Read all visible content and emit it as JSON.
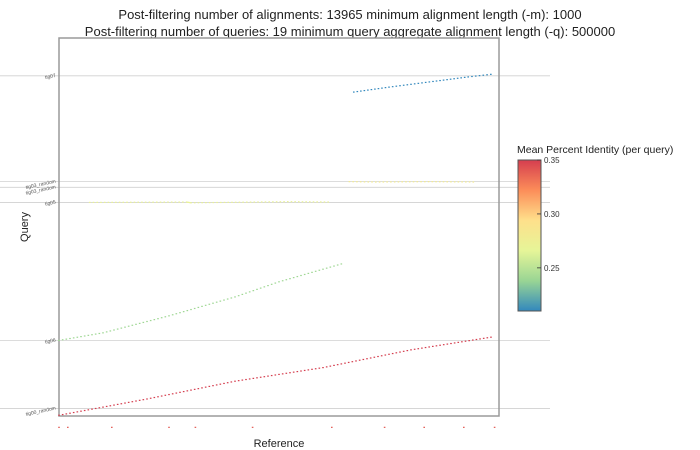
{
  "chart_data": {
    "type": "scatter",
    "title_lines": [
      "Post-filtering number of alignments: 13965     minimum alignment length (-m): 1000",
      "Post-filtering number of queries: 19        minimum query aggregate alignment length (-q): 500000"
    ],
    "xlabel": "Reference",
    "ylabel": "Query",
    "query_ticks": [
      {
        "label": "tig07",
        "pos": 0.1
      },
      {
        "label": "tig03_random",
        "pos": 0.38
      },
      {
        "label": "tig03_random",
        "pos": 0.395
      },
      {
        "label": "tig05",
        "pos": 0.435
      },
      {
        "label": "tig06",
        "pos": 0.8
      },
      {
        "label": "tig00_random",
        "pos": 0.98
      }
    ],
    "legend": {
      "title": "Mean Percent Identity (per query)",
      "min": 0.21,
      "max": 0.35,
      "ticks": [
        0.35,
        0.3,
        0.25
      ],
      "colors": [
        "#d53e4f",
        "#fc8d59",
        "#fee08b",
        "#e6f598",
        "#99d594",
        "#3288bd"
      ],
      "placement": "right"
    },
    "series": [
      {
        "query": "tig07",
        "identity": 0.21,
        "x": [
          0.67,
          0.75,
          0.85,
          0.93,
          0.99
        ],
        "y": [
          0.143,
          0.13,
          0.115,
          0.103,
          0.095
        ]
      },
      {
        "query": "tig05",
        "identity": 0.24,
        "x": [
          0.0,
          0.1,
          0.25,
          0.4,
          0.5,
          0.65
        ],
        "y": [
          0.8,
          0.78,
          0.735,
          0.685,
          0.645,
          0.595
        ]
      },
      {
        "query": "tig06",
        "identity": 0.35,
        "x": [
          0.0,
          0.2,
          0.4,
          0.6,
          0.8,
          0.99
        ],
        "y": [
          0.998,
          0.955,
          0.908,
          0.872,
          0.825,
          0.79
        ]
      },
      {
        "query": "tig03_random",
        "identity": 0.28,
        "x": [
          0.66,
          0.72,
          0.84,
          0.95
        ],
        "y": [
          0.38,
          0.381,
          0.38,
          0.381
        ]
      },
      {
        "query": "tig05",
        "identity": 0.27,
        "x": [
          0.07,
          0.29,
          0.3,
          0.52,
          0.62
        ],
        "y": [
          0.435,
          0.434,
          0.436,
          0.433,
          0.434
        ]
      },
      {
        "query": "tig00_random",
        "identity": 0.34,
        "x": [
          0.0,
          0.02,
          0.12,
          0.25,
          0.31,
          0.44,
          0.62,
          0.74,
          0.83,
          0.92,
          0.99
        ],
        "y": [
          1.03,
          1.03,
          1.03,
          1.03,
          1.03,
          1.03,
          1.03,
          1.03,
          1.03,
          1.03,
          1.03
        ]
      }
    ]
  }
}
